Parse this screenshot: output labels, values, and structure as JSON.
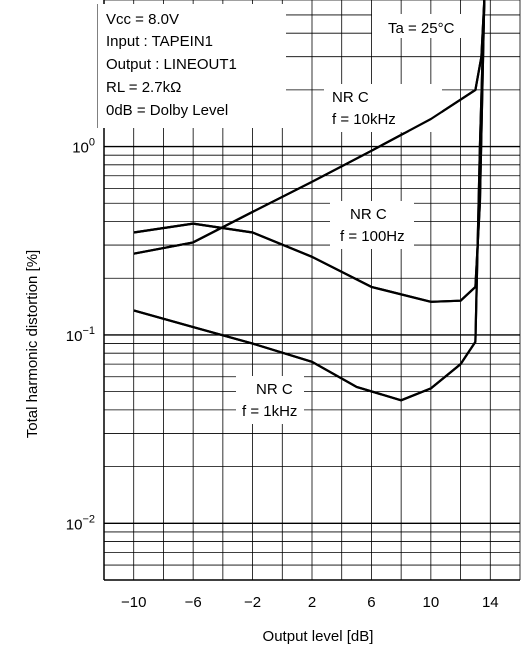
{
  "chart_data": {
    "type": "line",
    "xlabel": "Output level [dB]",
    "ylabel": "Total harmonic distortion [%]",
    "x_scale": "linear",
    "y_scale": "log",
    "xlim": [
      -12,
      16
    ],
    "ylim": [
      0.005,
      6
    ],
    "grid": true,
    "x_ticks": [
      {
        "value": -10,
        "label": "−10"
      },
      {
        "value": -6,
        "label": "−6"
      },
      {
        "value": -2,
        "label": "−2"
      },
      {
        "value": 2,
        "label": "2"
      },
      {
        "value": 6,
        "label": "6"
      },
      {
        "value": 10,
        "label": "10"
      },
      {
        "value": 14,
        "label": "14"
      }
    ],
    "y_ticks": [
      {
        "value": 1,
        "base": "10",
        "exp": "0"
      },
      {
        "value": 0.1,
        "base": "10",
        "exp": "−1"
      },
      {
        "value": 0.01,
        "base": "10",
        "exp": "−2"
      }
    ],
    "conditions": {
      "vcc": "Vcc = 8.0V",
      "input": "Input : TAPEIN1",
      "output": "Output : LINEOUT1",
      "rl": "RL = 2.7kΩ",
      "zero_db": "0dB = Dolby Level"
    },
    "ta": "Ta = 25°C",
    "series": [
      {
        "label1": "NR C",
        "label2": "f = 10kHz",
        "points": [
          [
            -10,
            0.27
          ],
          [
            -6,
            0.31
          ],
          [
            -2,
            0.45
          ],
          [
            2,
            0.65
          ],
          [
            6,
            0.95
          ],
          [
            10,
            1.4
          ],
          [
            13,
            2.0
          ],
          [
            13.4,
            3.0
          ],
          [
            13.6,
            6.0
          ]
        ]
      },
      {
        "label1": "NR C",
        "label2": "f = 100Hz",
        "points": [
          [
            -10,
            0.35
          ],
          [
            -6,
            0.39
          ],
          [
            -2,
            0.35
          ],
          [
            2,
            0.26
          ],
          [
            6,
            0.18
          ],
          [
            10,
            0.15
          ],
          [
            12,
            0.152
          ],
          [
            13,
            0.18
          ],
          [
            13.3,
            0.5
          ],
          [
            13.6,
            6.0
          ]
        ]
      },
      {
        "label1": "NR C",
        "label2": "f = 1kHz",
        "points": [
          [
            -10,
            0.135
          ],
          [
            -6,
            0.11
          ],
          [
            -2,
            0.09
          ],
          [
            2,
            0.072
          ],
          [
            5,
            0.053
          ],
          [
            8,
            0.045
          ],
          [
            10,
            0.052
          ],
          [
            12,
            0.07
          ],
          [
            13,
            0.092
          ],
          [
            13.3,
            1.0
          ],
          [
            13.6,
            6.0
          ]
        ]
      }
    ]
  }
}
